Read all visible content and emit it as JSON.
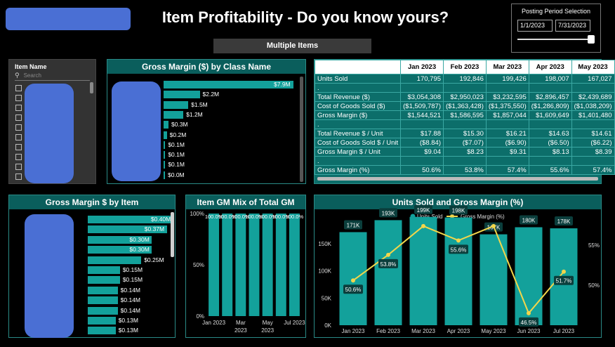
{
  "title": "Item Profitability - Do you know yours?",
  "selection_badge": "Multiple Items",
  "posting": {
    "title": "Posting Period Selection",
    "start": "1/1/2023",
    "end": "7/31/2023"
  },
  "slicer": {
    "title": "Item Name",
    "placeholder": "Search"
  },
  "class_chart": {
    "title": "Gross Margin ($) by Class Name",
    "values": [
      7.9,
      2.2,
      1.5,
      1.2,
      0.3,
      0.2,
      0.1,
      0.1,
      0.1,
      0.0
    ],
    "labels": [
      "$7.9M",
      "$2.2M",
      "$1.5M",
      "$1.2M",
      "$0.3M",
      "$0.2M",
      "$0.1M",
      "$0.1M",
      "$0.1M",
      "$0.0M"
    ]
  },
  "table": {
    "headers": [
      "",
      "Jan 2023",
      "Feb 2023",
      "Mar 2023",
      "Apr 2023",
      "May 2023"
    ],
    "rows": [
      [
        "Units Sold",
        "170,795",
        "192,846",
        "199,426",
        "198,007",
        "167,027"
      ],
      [
        ".",
        "",
        "",
        "",
        "",
        ""
      ],
      [
        "Total Revenue ($)",
        "$3,054,308",
        "$2,950,023",
        "$3,232,595",
        "$2,896,457",
        "$2,439,689"
      ],
      [
        "Cost of Goods Sold ($)",
        "($1,509,787)",
        "($1,363,428)",
        "($1,375,550)",
        "($1,286,809)",
        "($1,038,209)"
      ],
      [
        "Gross Margin ($)",
        "$1,544,521",
        "$1,586,595",
        "$1,857,044",
        "$1,609,649",
        "$1,401,480"
      ],
      [
        ".",
        "",
        "",
        "",
        "",
        ""
      ],
      [
        "Total Revenue $ / Unit",
        "$17.88",
        "$15.30",
        "$16.21",
        "$14.63",
        "$14.61"
      ],
      [
        "Cost of Goods Sold $ / Unit",
        "($8.84)",
        "($7.07)",
        "($6.90)",
        "($6.50)",
        "($6.22)"
      ],
      [
        "Gross Margin $ / Unit",
        "$9.04",
        "$8.23",
        "$9.31",
        "$8.13",
        "$8.39"
      ],
      [
        ".",
        "",
        "",
        "",
        "",
        ""
      ],
      [
        "Gross Margin (%)",
        "50.6%",
        "53.8%",
        "57.4%",
        "55.6%",
        "57.4%"
      ]
    ]
  },
  "item_chart": {
    "title": "Gross Margin $ by Item",
    "values": [
      0.4,
      0.37,
      0.3,
      0.3,
      0.25,
      0.15,
      0.15,
      0.14,
      0.14,
      0.14,
      0.13,
      0.13
    ],
    "labels": [
      "$0.40M",
      "$0.37M",
      "$0.30M",
      "$0.30M",
      "$0.25M",
      "$0.15M",
      "$0.15M",
      "$0.14M",
      "$0.14M",
      "$0.14M",
      "$0.13M",
      "$0.13M"
    ]
  },
  "mix_chart": {
    "title": "Item GM Mix of Total GM",
    "y_ticks": [
      "100%",
      "50%",
      "0%"
    ],
    "bar_count": 7,
    "bar_label": "100.0%",
    "x_labels": [
      [
        "Jan 2023"
      ],
      [
        "Mar",
        "2023"
      ],
      [
        "May",
        "2023"
      ],
      [
        "Jul 2023"
      ]
    ]
  },
  "chart_data": {
    "type": "bar",
    "title": "Units Sold and Gross Margin (%)",
    "categories": [
      "Jan 2023",
      "Feb 2023",
      "Mar 2023",
      "Apr 2023",
      "May 2023",
      "Jun 2023",
      "Jul 2023"
    ],
    "series": [
      {
        "name": "Units Sold",
        "type": "bar",
        "values": [
          171,
          193,
          199,
          198,
          167,
          180,
          178
        ],
        "labels": [
          "171K",
          "193K",
          "199K",
          "198K",
          "167K",
          "180K",
          "178K"
        ]
      },
      {
        "name": "Gross Margin (%)",
        "type": "line",
        "values": [
          50.6,
          53.8,
          57.4,
          55.6,
          57.4,
          46.5,
          51.7
        ],
        "labels": [
          "50.6%",
          "53.8%",
          "",
          "55.6%",
          "",
          "46.5%",
          "51.7%"
        ]
      }
    ],
    "y_left_ticks": [
      "150K",
      "100K",
      "50K",
      "0K"
    ],
    "y_right_ticks": [
      "55%",
      "50%"
    ],
    "ylim_left": [
      0,
      200
    ],
    "ylim_right": [
      45,
      58
    ],
    "legend": "top-center",
    "colors": {
      "bars": "#13a19b",
      "line": "#f2d64b"
    }
  }
}
